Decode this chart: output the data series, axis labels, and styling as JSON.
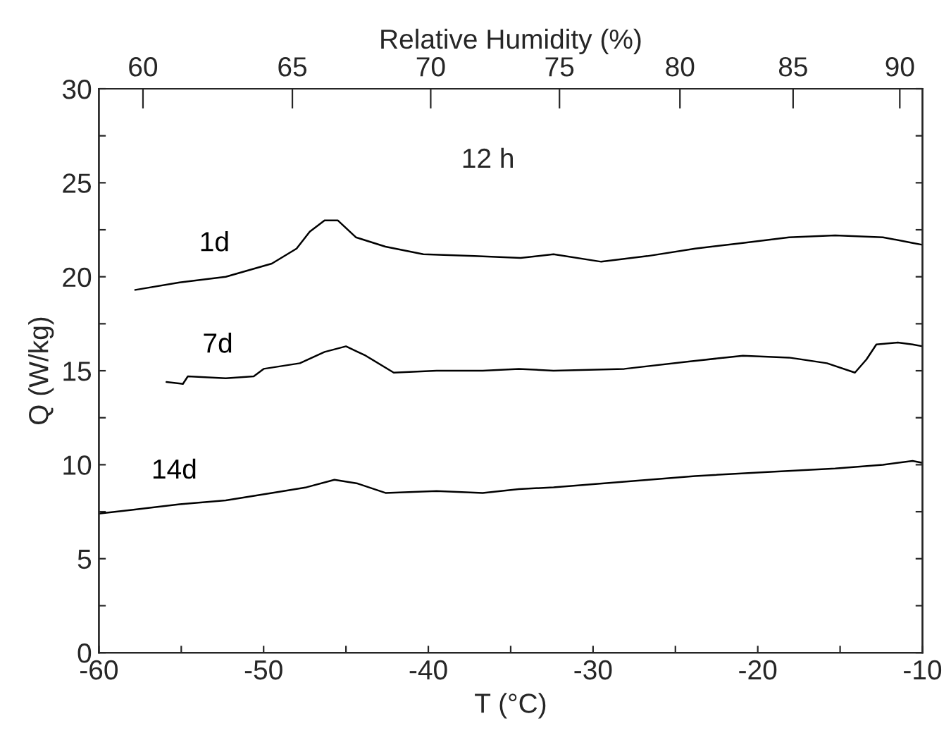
{
  "chart_data": {
    "type": "line",
    "xlabel": "T (°C)",
    "ylabel": "Q (W/kg)",
    "x2label": "Relative Humidity (%)",
    "annotations": [
      "12 h"
    ],
    "xlim": [
      -60,
      -10
    ],
    "xticks": [
      -60,
      {
        "value": -55,
        "label": null
      },
      -50,
      {
        "value": -45,
        "label": null
      },
      -40,
      {
        "value": -35,
        "label": null
      },
      -30,
      {
        "value": -25,
        "label": null
      },
      -20,
      {
        "value": -15,
        "label": null
      },
      -10
    ],
    "ylim": [
      0,
      30
    ],
    "yticks": [
      0,
      {
        "value": 2.5,
        "label": null
      },
      5,
      {
        "value": 7.5,
        "label": null
      },
      10,
      {
        "value": 12.5,
        "label": null
      },
      15,
      {
        "value": 17.5,
        "label": null
      },
      20,
      {
        "value": 22.5,
        "label": null
      },
      25,
      {
        "value": 27.5,
        "label": null
      },
      30
    ],
    "x2lim": [
      58.6,
      91.1
    ],
    "x2ticks": [
      60,
      65,
      70,
      75,
      80,
      85,
      90
    ],
    "log": "x2",
    "grid": false,
    "legend": false,
    "marker": "none",
    "line_style": "solid",
    "series": [
      {
        "name": "1d",
        "color": "#000000",
        "x": [
          -57.8,
          -55.1,
          -52.3,
          -49.5,
          -48.0,
          -47.2,
          -46.3,
          -45.5,
          -44.4,
          -42.6,
          -40.3,
          -37.2,
          -34.4,
          -32.4,
          -29.5,
          -26.7,
          -23.8,
          -20.9,
          -18.1,
          -15.3,
          -12.4,
          -10.6,
          -10.0
        ],
        "values": [
          19.3,
          19.7,
          20.0,
          20.7,
          21.5,
          22.4,
          23.0,
          23.0,
          22.1,
          21.6,
          21.2,
          21.1,
          21.0,
          21.2,
          20.8,
          21.1,
          21.5,
          21.8,
          22.1,
          22.2,
          22.1,
          21.8,
          21.7
        ]
      },
      {
        "name": "7d",
        "color": "#000000",
        "x": [
          -55.9,
          -54.9,
          -54.6,
          -52.3,
          -50.6,
          -50.0,
          -47.8,
          -46.3,
          -45.0,
          -43.8,
          -42.1,
          -39.5,
          -36.7,
          -34.5,
          -32.4,
          -28.1,
          -24.1,
          -20.9,
          -18.1,
          -15.8,
          -14.1,
          -13.4,
          -12.8,
          -11.5,
          -10.6,
          -10.0
        ],
        "values": [
          14.4,
          14.3,
          14.7,
          14.6,
          14.7,
          15.1,
          15.4,
          16.0,
          16.3,
          15.8,
          14.9,
          15.0,
          15.0,
          15.1,
          15.0,
          15.1,
          15.5,
          15.8,
          15.7,
          15.4,
          14.9,
          15.6,
          16.4,
          16.5,
          16.4,
          16.3
        ]
      },
      {
        "name": "14d",
        "color": "#000000",
        "x": [
          -60.0,
          -58.0,
          -55.1,
          -52.3,
          -49.5,
          -47.4,
          -45.7,
          -44.3,
          -42.6,
          -39.5,
          -36.7,
          -34.5,
          -32.4,
          -28.1,
          -23.8,
          -19.6,
          -15.3,
          -12.4,
          -10.6,
          -10.0
        ],
        "values": [
          7.4,
          7.6,
          7.9,
          8.1,
          8.5,
          8.8,
          9.2,
          9.0,
          8.5,
          8.6,
          8.5,
          8.7,
          8.8,
          9.1,
          9.4,
          9.6,
          9.8,
          10.0,
          10.2,
          10.1
        ]
      }
    ]
  }
}
